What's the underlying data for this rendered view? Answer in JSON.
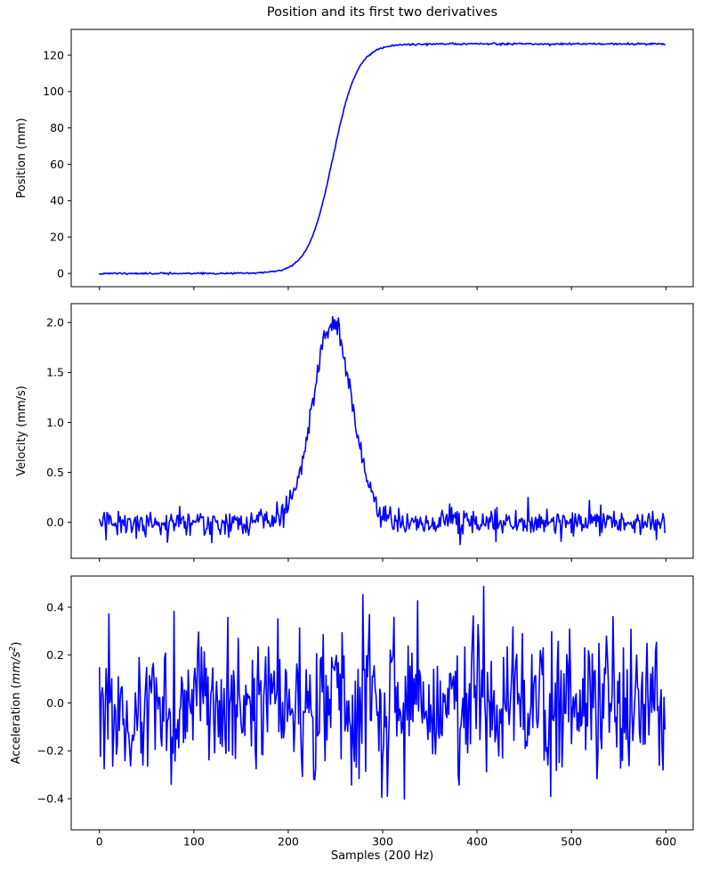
{
  "figure": {
    "title": "Position and its first two derivatives",
    "xlabel": "Samples (200 Hz)",
    "background": "#ffffff",
    "line_color": "#0000ff",
    "spine_color": "#000000",
    "text_color": "#000000",
    "xlim": [
      -29.95,
      628.95
    ],
    "xticks": {
      "values": [
        0,
        100,
        200,
        300,
        400,
        500,
        600
      ],
      "labels": [
        "0",
        "100",
        "200",
        "300",
        "400",
        "500",
        "600"
      ]
    }
  },
  "chart_data": [
    {
      "type": "line",
      "name": "position",
      "ylabel_runs": [
        {
          "t": "Position (mm)"
        }
      ],
      "yticks": {
        "values": [
          0,
          20,
          40,
          60,
          80,
          100,
          120
        ],
        "labels": [
          "0",
          "20",
          "40",
          "60",
          "80",
          "100",
          "120"
        ]
      },
      "ylim": [
        -7.3,
        134.2
      ],
      "n_points": 600,
      "x_range": [
        0,
        599
      ],
      "signal": {
        "kind": "sigmoid",
        "amplitude": 126.2,
        "center": 247,
        "tau": 13,
        "noise_std": 0.25,
        "seed": 11
      },
      "description": "Noisy sigmoid step: flat near 0 mm until ~sample 190, S-shaped rise with midpoint ~sample 247, plateau ~126 mm from ~sample 315 onward"
    },
    {
      "type": "line",
      "name": "velocity",
      "ylabel_runs": [
        {
          "t": "Velocity (mm/s)"
        }
      ],
      "yticks": {
        "values": [
          0,
          0.5,
          1,
          1.5,
          2
        ],
        "labels": [
          "0.0",
          "0.5",
          "1.0",
          "1.5",
          "2.0"
        ]
      },
      "ylim": [
        -0.36,
        2.19
      ],
      "n_points": 600,
      "x_range": [
        0,
        599
      ],
      "signal": {
        "kind": "gaussian_peak",
        "amplitude": 2.0,
        "center": 247,
        "sigma": 21,
        "noise_std": 0.068,
        "seed": 29
      },
      "description": "Gaussian velocity pulse peaking ~2.05 mm/s at sample ~247 (half-max width ~samples 222-272) riding on zero-mean noise of roughly ±0.2 mm/s"
    },
    {
      "type": "line",
      "name": "acceleration",
      "ylabel_runs": [
        {
          "t": "Acceleration ("
        },
        {
          "t": "mm/s",
          "italic": true
        },
        {
          "t": "2",
          "italic": true,
          "sup": true
        },
        {
          "t": ")"
        }
      ],
      "yticks": {
        "values": [
          -0.4,
          -0.2,
          0,
          0.2,
          0.4
        ],
        "labels": [
          "−0.4",
          "−0.2",
          "0.0",
          "0.2",
          "0.4"
        ]
      },
      "ylim": [
        -0.53,
        0.53
      ],
      "n_points": 600,
      "x_range": [
        0,
        599
      ],
      "signal": {
        "kind": "noise",
        "noise_std": 0.145,
        "seed": 77
      },
      "description": "Zero-mean white noise spanning roughly −0.48 to +0.47 mm/s^2 across all 600 samples"
    }
  ]
}
